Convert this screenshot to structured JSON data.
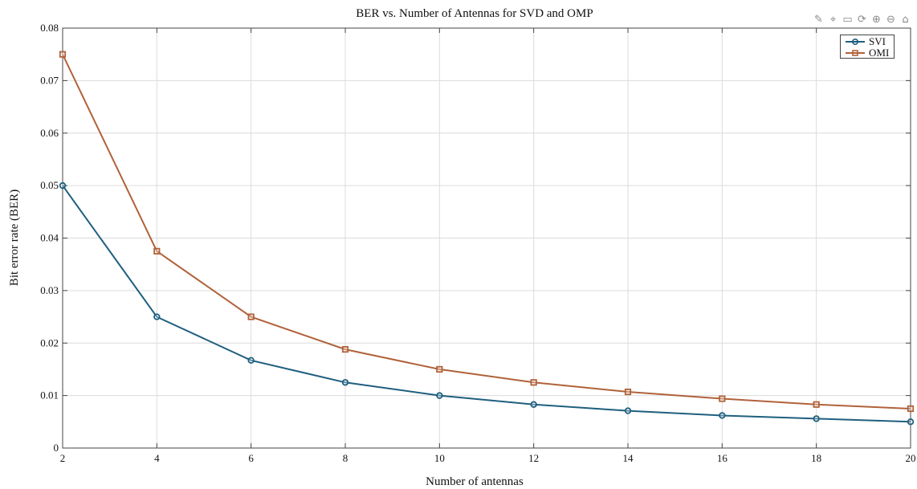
{
  "chart_data": {
    "type": "line",
    "title": "BER vs. Number of Antennas for SVD and OMP",
    "xlabel": "Number of antennas",
    "ylabel": "Bit error rate (BER)",
    "xlim": [
      2,
      20
    ],
    "ylim": [
      0,
      0.08
    ],
    "xticks": [
      2,
      4,
      6,
      8,
      10,
      12,
      14,
      16,
      18,
      20
    ],
    "yticks": [
      0,
      0.01,
      0.02,
      0.03,
      0.04,
      0.05,
      0.06,
      0.07,
      0.08
    ],
    "ytick_labels": [
      "0",
      "0.01",
      "0.02",
      "0.03",
      "0.04",
      "0.05",
      "0.06",
      "0.07",
      "0.08"
    ],
    "grid": true,
    "legend_position": "top-right",
    "x": [
      2,
      4,
      6,
      8,
      10,
      12,
      14,
      16,
      18,
      20
    ],
    "series": [
      {
        "name": "SVI",
        "color": "#1f5f7f",
        "marker": "circle",
        "values": [
          0.05,
          0.025,
          0.0167,
          0.0125,
          0.01,
          0.0083,
          0.0071,
          0.0062,
          0.0056,
          0.005
        ]
      },
      {
        "name": "OMI",
        "color": "#b0623a",
        "marker": "square",
        "values": [
          0.075,
          0.0375,
          0.025,
          0.0188,
          0.015,
          0.0125,
          0.0107,
          0.0094,
          0.0083,
          0.0075
        ]
      }
    ]
  },
  "toolbar": {
    "icons": [
      "brush-icon",
      "datatip-icon",
      "export-icon",
      "rotate-icon",
      "zoom-in-icon",
      "zoom-out-icon",
      "home-icon"
    ],
    "glyphs": [
      "✎",
      "⌖",
      "▭",
      "⟳",
      "⊕",
      "⊖",
      "⌂"
    ]
  }
}
